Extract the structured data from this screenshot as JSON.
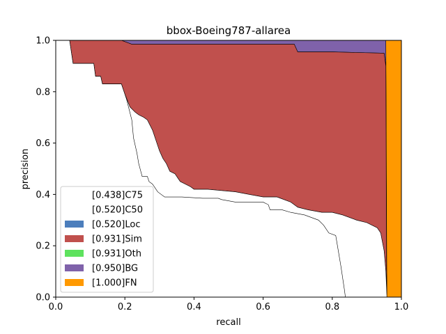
{
  "chart_data": {
    "type": "area",
    "title": "bbox-Boeing787-allarea",
    "xlabel": "recall",
    "ylabel": "precision",
    "xlim": [
      0,
      1
    ],
    "ylim": [
      0,
      1
    ],
    "xticks": [
      "0.0",
      "0.2",
      "0.4",
      "0.6",
      "0.8",
      "1.0"
    ],
    "yticks": [
      "0.0",
      "0.2",
      "0.4",
      "0.6",
      "0.8",
      "1.0"
    ],
    "grid": false,
    "legend_position": "lower-left",
    "series": [
      {
        "name": "[0.438]C75",
        "color": "#ffffff",
        "points": [
          [
            0,
            1
          ],
          [
            0.04,
            1
          ],
          [
            0.05,
            0.91
          ],
          [
            0.11,
            0.91
          ],
          [
            0.115,
            0.86
          ],
          [
            0.13,
            0.86
          ],
          [
            0.135,
            0.83
          ],
          [
            0.19,
            0.83
          ],
          [
            0.205,
            0.77
          ],
          [
            0.22,
            0.69
          ],
          [
            0.225,
            0.62
          ],
          [
            0.235,
            0.56
          ],
          [
            0.24,
            0.52
          ],
          [
            0.25,
            0.47
          ],
          [
            0.265,
            0.47
          ],
          [
            0.27,
            0.45
          ],
          [
            0.28,
            0.44
          ],
          [
            0.295,
            0.41
          ],
          [
            0.315,
            0.39
          ],
          [
            0.365,
            0.39
          ],
          [
            0.425,
            0.385
          ],
          [
            0.47,
            0.385
          ],
          [
            0.48,
            0.38
          ],
          [
            0.52,
            0.37
          ],
          [
            0.6,
            0.37
          ],
          [
            0.615,
            0.36
          ],
          [
            0.62,
            0.34
          ],
          [
            0.655,
            0.34
          ],
          [
            0.68,
            0.33
          ],
          [
            0.72,
            0.32
          ],
          [
            0.76,
            0.3
          ],
          [
            0.775,
            0.28
          ],
          [
            0.79,
            0.25
          ],
          [
            0.81,
            0.24
          ],
          [
            0.815,
            0.2
          ],
          [
            0.825,
            0.12
          ],
          [
            0.835,
            0.03
          ],
          [
            0.838,
            0
          ]
        ]
      },
      {
        "name": "[0.520]C50",
        "color": "#ffffff",
        "points": [
          [
            0,
            1
          ],
          [
            0.04,
            1
          ],
          [
            0.05,
            0.91
          ],
          [
            0.11,
            0.91
          ],
          [
            0.115,
            0.86
          ],
          [
            0.13,
            0.86
          ],
          [
            0.135,
            0.83
          ],
          [
            0.19,
            0.83
          ],
          [
            0.2,
            0.79
          ],
          [
            0.215,
            0.74
          ],
          [
            0.23,
            0.72
          ],
          [
            0.24,
            0.71
          ],
          [
            0.255,
            0.7
          ],
          [
            0.265,
            0.69
          ],
          [
            0.28,
            0.65
          ],
          [
            0.29,
            0.61
          ],
          [
            0.3,
            0.57
          ],
          [
            0.31,
            0.54
          ],
          [
            0.32,
            0.52
          ],
          [
            0.33,
            0.49
          ],
          [
            0.345,
            0.48
          ],
          [
            0.36,
            0.45
          ],
          [
            0.375,
            0.44
          ],
          [
            0.39,
            0.43
          ],
          [
            0.4,
            0.42
          ],
          [
            0.44,
            0.42
          ],
          [
            0.52,
            0.41
          ],
          [
            0.56,
            0.4
          ],
          [
            0.6,
            0.39
          ],
          [
            0.64,
            0.39
          ],
          [
            0.68,
            0.37
          ],
          [
            0.7,
            0.35
          ],
          [
            0.73,
            0.34
          ],
          [
            0.77,
            0.33
          ],
          [
            0.8,
            0.33
          ],
          [
            0.83,
            0.32
          ],
          [
            0.87,
            0.3
          ],
          [
            0.9,
            0.29
          ],
          [
            0.93,
            0.27
          ],
          [
            0.94,
            0.25
          ],
          [
            0.95,
            0.18
          ],
          [
            0.955,
            0.1
          ],
          [
            0.958,
            0
          ]
        ]
      },
      {
        "name": "[0.520]Loc",
        "color": "#4c7ebc",
        "points": [
          [
            0,
            1
          ],
          [
            0.04,
            1
          ],
          [
            0.05,
            0.91
          ],
          [
            0.11,
            0.91
          ],
          [
            0.115,
            0.86
          ],
          [
            0.13,
            0.86
          ],
          [
            0.135,
            0.83
          ],
          [
            0.19,
            0.83
          ],
          [
            0.2,
            0.79
          ],
          [
            0.215,
            0.74
          ],
          [
            0.23,
            0.72
          ],
          [
            0.24,
            0.71
          ],
          [
            0.255,
            0.7
          ],
          [
            0.265,
            0.69
          ],
          [
            0.28,
            0.65
          ],
          [
            0.29,
            0.61
          ],
          [
            0.3,
            0.57
          ],
          [
            0.31,
            0.54
          ],
          [
            0.32,
            0.52
          ],
          [
            0.33,
            0.49
          ],
          [
            0.345,
            0.48
          ],
          [
            0.36,
            0.45
          ],
          [
            0.375,
            0.44
          ],
          [
            0.39,
            0.43
          ],
          [
            0.4,
            0.42
          ],
          [
            0.44,
            0.42
          ],
          [
            0.52,
            0.41
          ],
          [
            0.56,
            0.4
          ],
          [
            0.6,
            0.39
          ],
          [
            0.64,
            0.39
          ],
          [
            0.68,
            0.37
          ],
          [
            0.7,
            0.35
          ],
          [
            0.73,
            0.34
          ],
          [
            0.77,
            0.33
          ],
          [
            0.8,
            0.33
          ],
          [
            0.83,
            0.32
          ],
          [
            0.87,
            0.3
          ],
          [
            0.9,
            0.29
          ],
          [
            0.93,
            0.27
          ],
          [
            0.94,
            0.25
          ],
          [
            0.95,
            0.18
          ],
          [
            0.955,
            0.1
          ],
          [
            0.958,
            0
          ]
        ]
      },
      {
        "name": "[0.931]Sim",
        "color": "#c0504d",
        "points": [
          [
            0.04,
            1
          ],
          [
            0.19,
            1
          ],
          [
            0.22,
            0.985
          ],
          [
            0.69,
            0.985
          ],
          [
            0.7,
            0.955
          ],
          [
            0.8,
            0.955
          ],
          [
            0.95,
            0.95
          ],
          [
            0.955,
            0.9
          ],
          [
            0.956,
            0.5
          ],
          [
            0.957,
            0.1
          ],
          [
            0.958,
            0
          ]
        ]
      },
      {
        "name": "[0.931]Oth",
        "color": "#5ee25e",
        "points": [
          [
            0.04,
            1
          ],
          [
            0.19,
            1
          ],
          [
            0.22,
            0.985
          ],
          [
            0.69,
            0.985
          ],
          [
            0.7,
            0.955
          ],
          [
            0.8,
            0.955
          ],
          [
            0.95,
            0.95
          ],
          [
            0.955,
            0.9
          ],
          [
            0.956,
            0.5
          ],
          [
            0.957,
            0.1
          ],
          [
            0.958,
            0
          ]
        ]
      },
      {
        "name": "[0.950]BG",
        "color": "#7f62aa",
        "points": [
          [
            0.04,
            1
          ],
          [
            0.955,
            1
          ],
          [
            0.958,
            0
          ]
        ]
      },
      {
        "name": "[1.000]FN",
        "color": "#ff9900",
        "points": [
          [
            0,
            1
          ],
          [
            1,
            1
          ],
          [
            1,
            0
          ]
        ]
      }
    ]
  },
  "legend": {
    "items": [
      "[0.438]C75",
      "[0.520]C50",
      "[0.520]Loc",
      "[0.931]Sim",
      "[0.931]Oth",
      "[0.950]BG",
      "[1.000]FN"
    ]
  }
}
